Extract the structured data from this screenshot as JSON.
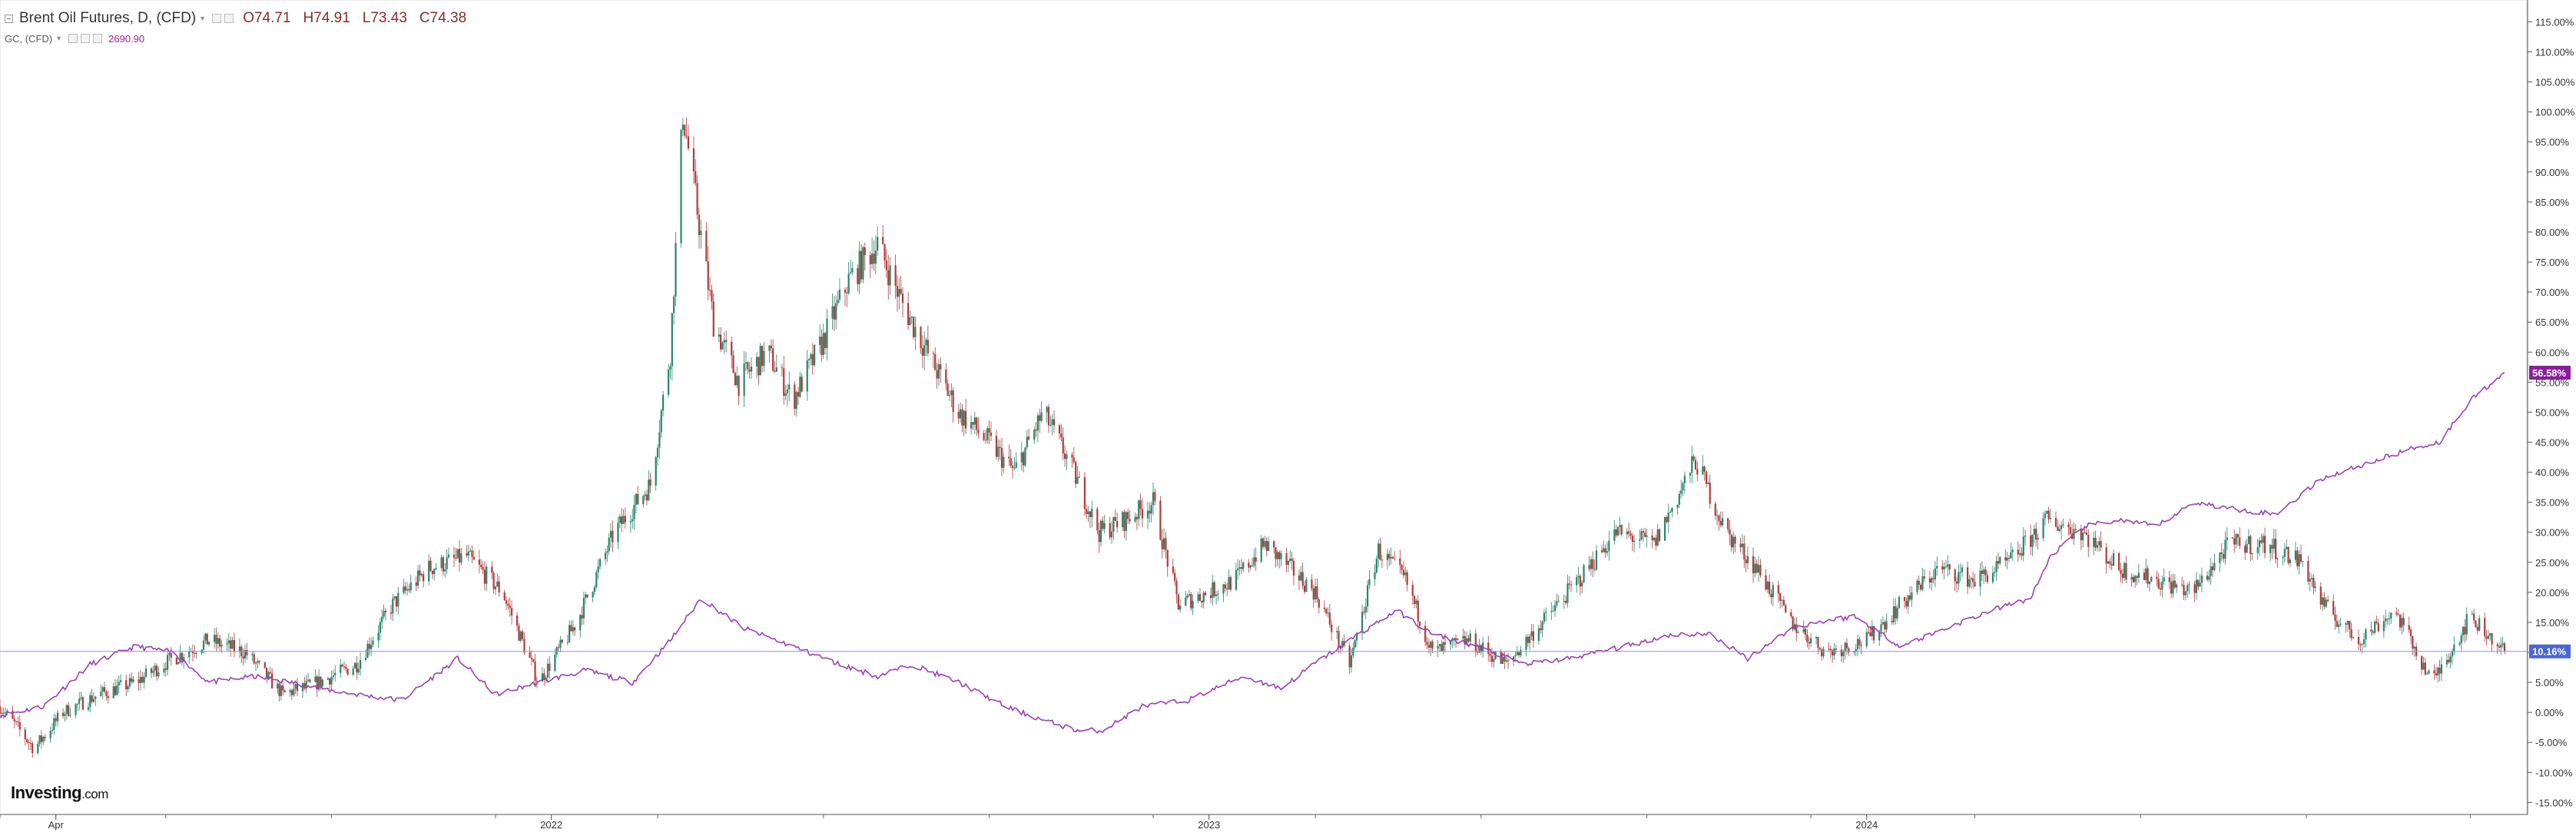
{
  "legend": {
    "main_title": "Brent Oil Futures, D, (CFD)",
    "open": "O74.71",
    "high": "H74.91",
    "low": "L73.43",
    "close": "C74.38",
    "secondary_title": "GC, (CFD)",
    "secondary_value": "2690.90"
  },
  "logo": {
    "brand": "Investing",
    "suffix": ".com"
  },
  "colors": {
    "up_candle": "#26866a",
    "down_candle": "#b03a3a",
    "gold_line": "#9c3fb5",
    "gold_badge": "#8a1f9a",
    "brent_line": "#8a8ef0",
    "brent_badge": "#4a66d8",
    "grid": "#e6e6e6"
  },
  "chart_data": {
    "type": "line",
    "y_axis": {
      "side": "right",
      "unit": "%",
      "range": [
        -17,
        118
      ],
      "ticks": [
        "115.00%",
        "110.00%",
        "105.00%",
        "100.00%",
        "95.00%",
        "90.00%",
        "85.00%",
        "80.00%",
        "75.00%",
        "70.00%",
        "65.00%",
        "60.00%",
        "55.00%",
        "50.00%",
        "45.00%",
        "40.00%",
        "35.00%",
        "30.00%",
        "25.00%",
        "20.00%",
        "15.00%",
        "10.00%",
        "5.00%",
        "0.00%",
        "-5.00%",
        "-10.00%",
        "-15.00%"
      ],
      "tick_values": [
        115,
        110,
        105,
        100,
        95,
        90,
        85,
        80,
        75,
        70,
        65,
        60,
        55,
        50,
        45,
        40,
        35,
        30,
        25,
        20,
        15,
        10,
        5,
        0,
        -5,
        -10,
        -15
      ]
    },
    "x_axis": {
      "range": [
        "2021-03-01",
        "2024-12-20"
      ],
      "labels": [
        {
          "date": "2021-04-01",
          "text": "Apr"
        },
        {
          "date": "2022-01-01",
          "text": "2022"
        },
        {
          "date": "2023-01-01",
          "text": "2023"
        },
        {
          "date": "2024-01-01",
          "text": "2024"
        }
      ]
    },
    "series": [
      {
        "name": "Brent Oil Futures, D, (CFD)",
        "style": "candlestick",
        "last_value_label": "10.16%",
        "last_value": 10.16,
        "x": [
          "2021-03-01",
          "2021-03-20",
          "2021-04-05",
          "2021-04-25",
          "2021-05-15",
          "2021-06-05",
          "2021-06-25",
          "2021-07-15",
          "2021-08-05",
          "2021-08-25",
          "2021-09-15",
          "2021-10-05",
          "2021-10-25",
          "2021-11-15",
          "2021-12-05",
          "2021-12-25",
          "2022-01-15",
          "2022-02-05",
          "2022-02-25",
          "2022-03-08",
          "2022-03-15",
          "2022-04-01",
          "2022-04-15",
          "2022-05-01",
          "2022-05-15",
          "2022-06-01",
          "2022-06-15",
          "2022-07-01",
          "2022-07-15",
          "2022-08-01",
          "2022-08-15",
          "2022-09-01",
          "2022-09-15",
          "2022-10-01",
          "2022-10-15",
          "2022-11-01",
          "2022-11-15",
          "2022-12-01",
          "2022-12-15",
          "2023-01-01",
          "2023-01-15",
          "2023-02-01",
          "2023-02-15",
          "2023-03-01",
          "2023-03-20",
          "2023-04-05",
          "2023-04-20",
          "2023-05-05",
          "2023-05-25",
          "2023-06-15",
          "2023-07-05",
          "2023-07-25",
          "2023-08-15",
          "2023-09-05",
          "2023-09-28",
          "2023-10-15",
          "2023-11-01",
          "2023-11-20",
          "2023-12-10",
          "2024-01-01",
          "2024-01-20",
          "2024-02-10",
          "2024-03-01",
          "2024-03-20",
          "2024-04-10",
          "2024-04-30",
          "2024-05-20",
          "2024-06-10",
          "2024-06-30",
          "2024-07-20",
          "2024-08-10",
          "2024-08-30",
          "2024-09-10",
          "2024-09-30",
          "2024-10-20",
          "2024-11-10",
          "2024-12-01",
          "2024-12-20"
        ],
        "y": [
          1,
          -6,
          0,
          3,
          5,
          9,
          12,
          10,
          3,
          5,
          8,
          18,
          24,
          26,
          20,
          5,
          15,
          30,
          38,
          60,
          100,
          65,
          55,
          60,
          52,
          62,
          72,
          78,
          68,
          58,
          50,
          45,
          40,
          50,
          42,
          30,
          32,
          35,
          18,
          20,
          22,
          28,
          24,
          20,
          8,
          27,
          22,
          10,
          12,
          8,
          15,
          22,
          30,
          28,
          42,
          30,
          24,
          15,
          10,
          12,
          18,
          24,
          22,
          25,
          32,
          30,
          24,
          22,
          20,
          28,
          28,
          25,
          18,
          12,
          17,
          5,
          16,
          10.16
        ]
      },
      {
        "name": "GC, (CFD)",
        "style": "line",
        "last_value_label": "56.58%",
        "last_value": 56.58,
        "x": [
          "2021-03-01",
          "2021-03-25",
          "2021-04-20",
          "2021-05-15",
          "2021-06-05",
          "2021-06-25",
          "2021-07-20",
          "2021-08-10",
          "2021-08-25",
          "2021-09-15",
          "2021-10-10",
          "2021-11-10",
          "2021-12-01",
          "2021-12-25",
          "2022-01-20",
          "2022-02-15",
          "2022-03-08",
          "2022-03-25",
          "2022-04-18",
          "2022-05-15",
          "2022-06-10",
          "2022-07-01",
          "2022-07-20",
          "2022-08-15",
          "2022-09-10",
          "2022-09-28",
          "2022-10-20",
          "2022-11-03",
          "2022-11-25",
          "2022-12-20",
          "2023-01-20",
          "2023-02-10",
          "2023-02-28",
          "2023-03-20",
          "2023-04-15",
          "2023-05-05",
          "2023-05-30",
          "2023-06-25",
          "2023-07-20",
          "2023-08-20",
          "2023-09-15",
          "2023-10-06",
          "2023-10-27",
          "2023-11-20",
          "2023-12-04",
          "2023-12-25",
          "2024-01-20",
          "2024-02-14",
          "2024-03-10",
          "2024-04-01",
          "2024-04-12",
          "2024-05-01",
          "2024-05-20",
          "2024-06-10",
          "2024-07-01",
          "2024-07-20",
          "2024-08-15",
          "2024-09-10",
          "2024-09-30",
          "2024-10-30",
          "2024-11-14",
          "2024-12-01",
          "2024-12-20"
        ],
        "y": [
          -0.5,
          1,
          8,
          11,
          10,
          5,
          6,
          5,
          4,
          3,
          2,
          9,
          3,
          5,
          7,
          5,
          12,
          19,
          14,
          11,
          8,
          6,
          8,
          5,
          1,
          -1,
          -3,
          -3,
          1,
          2,
          6,
          4,
          8,
          12,
          17,
          13,
          11,
          8,
          9,
          11,
          13,
          13,
          9,
          14,
          15,
          16,
          11,
          14,
          17,
          19,
          26,
          31,
          32,
          31,
          35,
          34,
          33,
          39,
          41,
          44,
          45,
          52,
          56.58
        ]
      }
    ],
    "reference_lines": [
      {
        "value": 10.16,
        "label": "10.16%"
      }
    ],
    "grid": false,
    "legend_position": "top-left"
  }
}
